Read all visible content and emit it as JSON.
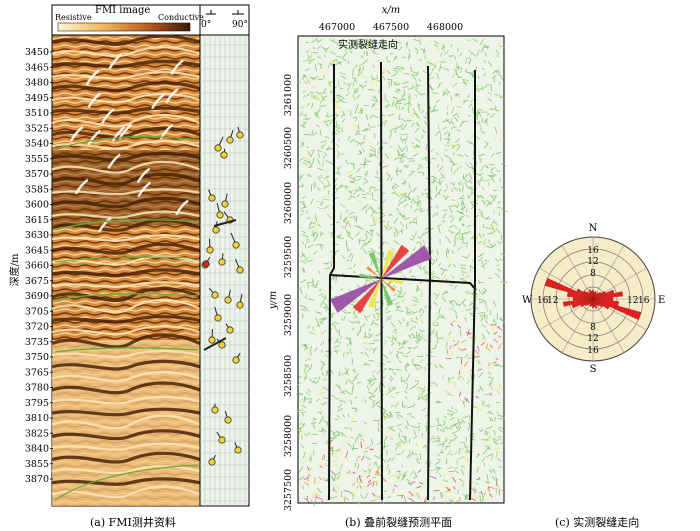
{
  "panel_a": {
    "header_title": "FMI image",
    "resistive_label": "Resistive",
    "conductive_label": "Conductive",
    "dip_min": "0°",
    "dip_max": "90°",
    "depth_axis_label": "深度/m",
    "depth_ticks": [
      "3450",
      "3465",
      "3480",
      "3495",
      "3510",
      "3525",
      "3540",
      "3555",
      "3570",
      "3585",
      "3600",
      "3615",
      "3630",
      "3645",
      "3660",
      "3675",
      "3690",
      "3705",
      "3720",
      "3735",
      "3750",
      "3765",
      "3780",
      "3795",
      "3810",
      "3825",
      "3840",
      "3855",
      "3870"
    ],
    "caption": "(a) FMI测井资料"
  },
  "panel_b": {
    "x_axis_label": "x/m",
    "x_ticks": [
      "467000",
      "467500",
      "468000"
    ],
    "y_axis_label": "y/m",
    "y_ticks": [
      "3261000",
      "3260500",
      "3260000",
      "3259500",
      "3259000",
      "3258500",
      "3258000",
      "3257500"
    ],
    "annotation": "实测裂缝走向",
    "caption": "(b) 叠前裂缝预测平面"
  },
  "panel_c": {
    "north": "N",
    "south": "S",
    "west": "W",
    "east": "E",
    "ring_labels_n": [
      "16",
      "12",
      "8"
    ],
    "ring_labels_s": [
      "8",
      "12",
      "16"
    ],
    "ring_labels_w": [
      "16",
      "12"
    ],
    "ring_labels_e": [
      "12",
      "16"
    ],
    "caption": "(c) 实测裂缝走向"
  },
  "colors": {
    "conductive": "#5a2e0f",
    "resistive": "#f6d9a0",
    "mid": "#d4822e",
    "trend_green": "#6aaa3a",
    "fracture_green": "#7cc36a",
    "fracture_red": "#e23b3b",
    "fracture_purple": "#9b4fa6",
    "fracture_yellow": "#f2e44a",
    "rose_bg": "#f6ecc8",
    "rose_red": "#e02020"
  }
}
